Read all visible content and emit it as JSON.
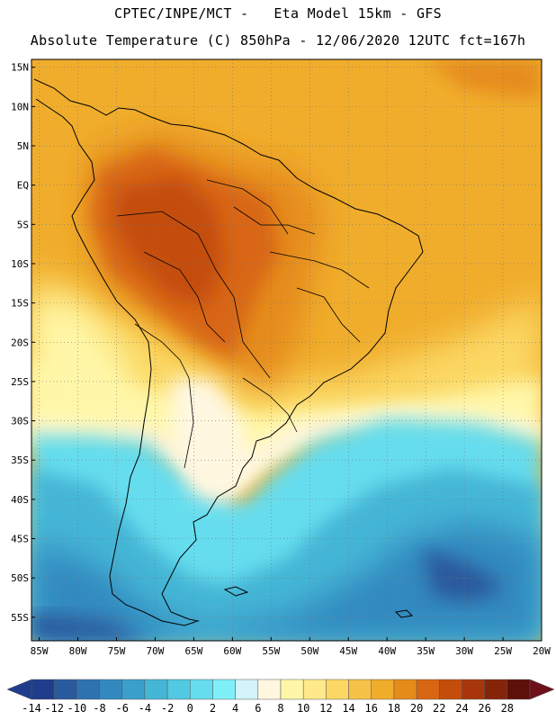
{
  "header": {
    "line1": "CPTEC/INPE/MCT -   Eta Model 15km - GFS",
    "line2": "Absolute Temperature (C) 850hPa - 12/06/2020 12UTC fct=167h"
  },
  "map": {
    "lat_labels": [
      "15N",
      "10N",
      "5N",
      "EQ",
      "5S",
      "10S",
      "15S",
      "20S",
      "25S",
      "30S",
      "35S",
      "40S",
      "45S",
      "50S",
      "55S"
    ],
    "lon_labels": [
      "85W",
      "80W",
      "75W",
      "70W",
      "65W",
      "60W",
      "55W",
      "50W",
      "45W",
      "40W",
      "35W",
      "30W",
      "25W",
      "20W"
    ],
    "lat_values": [
      15,
      10,
      5,
      0,
      -5,
      -10,
      -15,
      -20,
      -25,
      -30,
      -35,
      -40,
      -45,
      -50,
      -55
    ],
    "lon_values": [
      -85,
      -80,
      -75,
      -70,
      -65,
      -60,
      -55,
      -50,
      -45,
      -40,
      -35,
      -30,
      -25,
      -20
    ],
    "extent": {
      "lon_min": -86,
      "lon_max": -20,
      "lat_min": -58,
      "lat_max": 16
    }
  },
  "legend": {
    "tick_labels": [
      "-14",
      "-12",
      "-10",
      "-8",
      "-6",
      "-4",
      "-2",
      "0",
      "2",
      "4",
      "6",
      "8",
      "10",
      "12",
      "14",
      "16",
      "18",
      "20",
      "22",
      "24",
      "26",
      "28"
    ],
    "colors": [
      "#1f3d8c",
      "#2a5a9e",
      "#2f72b0",
      "#3389bf",
      "#3aa0cb",
      "#44b6d6",
      "#52c9e2",
      "#66ddee",
      "#80f0f8",
      "#d2f4fa",
      "#fff7e0",
      "#fff7a8",
      "#ffe98a",
      "#fbd864",
      "#f6c247",
      "#f0ad2c",
      "#e58b1a",
      "#d86612",
      "#c44d0c",
      "#a8360a",
      "#86240a",
      "#5c1008"
    ]
  }
}
